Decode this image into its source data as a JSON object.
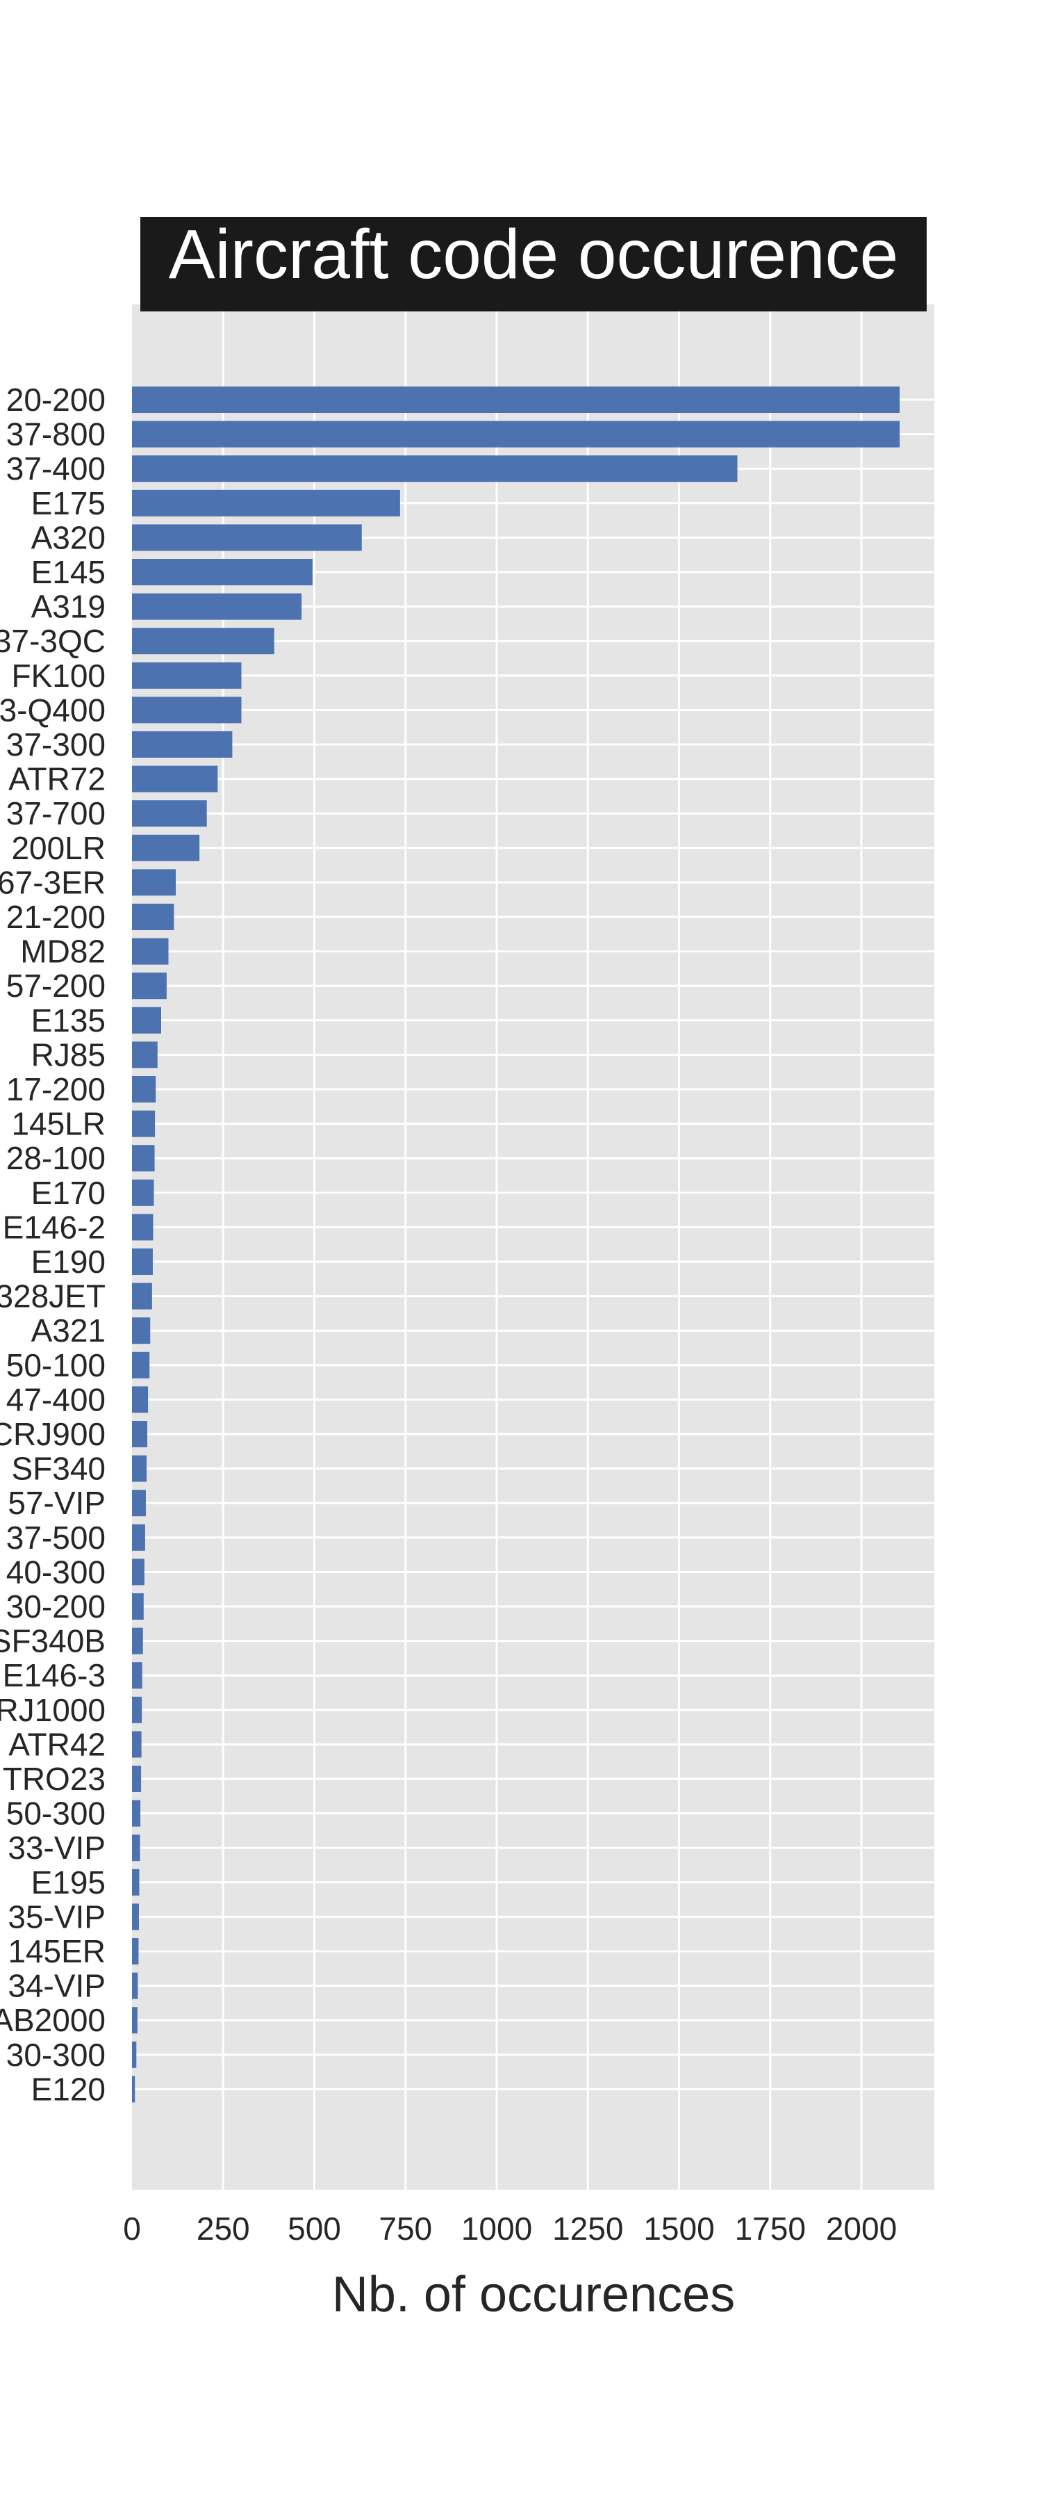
{
  "chart_data": {
    "type": "bar",
    "orientation": "horizontal",
    "title": "Aircraft code occurence",
    "xlabel": "Nb. of occurences",
    "ylabel": "",
    "xlim": [
      0,
      2200
    ],
    "xticks": [
      0,
      250,
      500,
      750,
      1000,
      1250,
      1500,
      1750,
      2000
    ],
    "grid": true,
    "legend": "none",
    "bar_color": "#4c72b0",
    "background_color": "#e5e5e5",
    "title_box_color": "#1a1a1a",
    "categories": [
      "20-200",
      "37-800",
      "37-400",
      "E175",
      "A320",
      "E145",
      "A319",
      "37-3QC",
      "FK100",
      "3-Q400",
      "37-300",
      "ATR72",
      "37-700",
      "200LR",
      "67-3ER",
      "21-200",
      "MD82",
      "57-200",
      "E135",
      "RJ85",
      "17-200",
      "145LR",
      "28-100",
      "E170",
      "E146-2",
      "E190",
      "328JET",
      "A321",
      "50-100",
      "47-400",
      "CRJ900",
      "SF340",
      "57-VIP",
      "37-500",
      "40-300",
      "30-200",
      "SF340B",
      "E146-3",
      "RJ1000",
      "ATR42",
      "TRO23",
      "50-300",
      "33-VIP",
      "E195",
      "35-VIP",
      "145ER",
      "34-VIP",
      "AB2000",
      "30-300",
      "E120"
    ],
    "values": [
      2105,
      2105,
      1660,
      735,
      630,
      495,
      465,
      390,
      300,
      300,
      275,
      235,
      205,
      185,
      120,
      115,
      100,
      95,
      80,
      70,
      65,
      63,
      62,
      60,
      58,
      57,
      55,
      50,
      48,
      44,
      42,
      40,
      38,
      36,
      34,
      32,
      30,
      28,
      27,
      26,
      25,
      23,
      22,
      20,
      19,
      18,
      16,
      15,
      12,
      8
    ]
  }
}
